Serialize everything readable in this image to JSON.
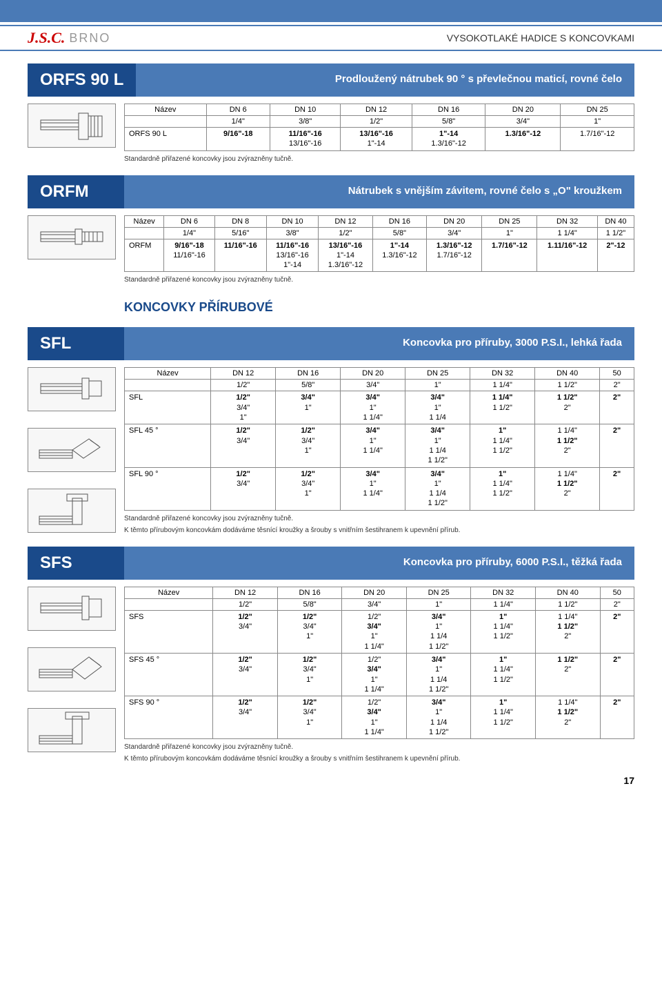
{
  "header": {
    "page_title": "VYSOKOTLAKÉ HADICE S KONCOVKAMI",
    "logo_jsc": "J.S.C.",
    "logo_brno": "BRNO"
  },
  "std_note": "Standardně přiřazené koncovky jsou zvýrazněny tučně.",
  "flange_note": "K těmto přírubovým koncovkám dodáváme těsnící kroužky a šrouby s vnitřním šestihranem k upevnění přírub.",
  "page_number": "17",
  "s1": {
    "code": "ORFS 90 L",
    "desc": "Prodloužený nátrubek 90 ° s převlečnou maticí, rovné čelo",
    "table": {
      "head1": [
        "Název",
        "DN 6",
        "DN 10",
        "DN 12",
        "DN 16",
        "DN 20",
        "DN 25"
      ],
      "head2": [
        "",
        "1/4\"",
        "3/8\"",
        "1/2\"",
        "5/8\"",
        "3/4\"",
        "1\""
      ],
      "rows": [
        [
          "ORFS 90 L",
          "9/16\"-18",
          [
            "11/16\"-16",
            "13/16\"-16"
          ],
          [
            "13/16\"-16",
            "1\"-14"
          ],
          [
            "1\"-14",
            "1.3/16\"-12"
          ],
          "1.3/16\"-12",
          "1.7/16\"-12"
        ]
      ],
      "bold": [
        [
          0,
          1
        ],
        [
          1,
          0
        ],
        [
          2,
          0
        ],
        [
          3,
          0
        ],
        [
          4,
          0
        ],
        [
          5,
          0
        ]
      ]
    }
  },
  "s2": {
    "code": "ORFM",
    "desc": "Nátrubek s vnějším závitem, rovné čelo s „O\" kroužkem",
    "table": {
      "head1": [
        "Název",
        "DN 6",
        "DN 8",
        "DN 10",
        "DN 12",
        "DN 16",
        "DN 20",
        "DN 25",
        "DN 32",
        "DN 40"
      ],
      "head2": [
        "",
        "1/4\"",
        "5/16\"",
        "3/8\"",
        "1/2\"",
        "5/8\"",
        "3/4\"",
        "1\"",
        "1 1/4\"",
        "1 1/2\""
      ],
      "rows": [
        [
          "ORFM",
          [
            "9/16\"-18",
            "11/16\"-16"
          ],
          "11/16\"-16",
          [
            "11/16\"-16",
            "13/16\"-16",
            "1\"-14"
          ],
          [
            "13/16\"-16",
            "1\"-14",
            "1.3/16\"-12"
          ],
          [
            "1\"-14",
            "1.3/16\"-12"
          ],
          [
            "1.3/16\"-12",
            "1.7/16\"-12"
          ],
          "1.7/16\"-12",
          "1.11/16\"-12",
          "2\"-12"
        ]
      ],
      "bold": [
        [
          0,
          1
        ],
        [
          1,
          0
        ],
        [
          2,
          0
        ],
        [
          3,
          0
        ],
        [
          4,
          0
        ],
        [
          5,
          0
        ],
        [
          6,
          0
        ],
        [
          7,
          0
        ],
        [
          8,
          0
        ],
        [
          9,
          0
        ]
      ]
    }
  },
  "inter": "KONCOVKY PŘÍRUBOVÉ",
  "s3": {
    "code": "SFL",
    "desc": "Koncovka pro příruby, 3000 P.S.I., lehká řada",
    "table": {
      "head1": [
        "Název",
        "DN 12",
        "DN 16",
        "DN 20",
        "DN 25",
        "DN 32",
        "DN 40",
        "50"
      ],
      "head2": [
        "",
        "1/2\"",
        "5/8\"",
        "3/4\"",
        "1\"",
        "1 1/4\"",
        "1 1/2\"",
        "2\""
      ],
      "rows": [
        [
          "SFL",
          [
            "1/2\"",
            "3/4\"",
            "1\""
          ],
          [
            "3/4\"",
            "1\""
          ],
          [
            "3/4\"",
            "1\"",
            "1 1/4\""
          ],
          [
            "3/4\"",
            "1\"",
            "1 1/4"
          ],
          [
            "1 1/4\"",
            "1 1/2\""
          ],
          [
            "1 1/2\"",
            "2\""
          ],
          "2\""
        ],
        [
          "SFL 45 °",
          [
            "1/2\"",
            "3/4\""
          ],
          [
            "1/2\"",
            "3/4\"",
            "1\""
          ],
          [
            "3/4\"",
            "1\"",
            "1 1/4\""
          ],
          [
            "3/4\"",
            "1\"",
            "1 1/4",
            "1 1/2\""
          ],
          [
            "1\"",
            "1 1/4\"",
            "1 1/2\""
          ],
          [
            "1 1/4\"",
            "1 1/2\"",
            "2\""
          ],
          "2\""
        ],
        [
          "SFL 90 °",
          [
            "1/2\"",
            "3/4\""
          ],
          [
            "1/2\"",
            "3/4\"",
            "1\""
          ],
          [
            "3/4\"",
            "1\"",
            "1 1/4\""
          ],
          [
            "3/4\"",
            "1\"",
            "1 1/4",
            "1 1/2\""
          ],
          [
            "1\"",
            "1 1/4\"",
            "1 1/2\""
          ],
          [
            "1 1/4\"",
            "1 1/2\"",
            "2\""
          ],
          "2\""
        ]
      ],
      "bold": {
        "0": [
          [
            1,
            0
          ],
          [
            2,
            0
          ],
          [
            3,
            0
          ],
          [
            4,
            0
          ],
          [
            5,
            0
          ],
          [
            6,
            0
          ],
          [
            7,
            0
          ]
        ],
        "1": [
          [
            1,
            0
          ],
          [
            2,
            0
          ],
          [
            3,
            0
          ],
          [
            4,
            0
          ],
          [
            5,
            0
          ],
          [
            6,
            1
          ],
          [
            7,
            0
          ]
        ],
        "2": [
          [
            1,
            0
          ],
          [
            2,
            0
          ],
          [
            3,
            0
          ],
          [
            4,
            0
          ],
          [
            5,
            0
          ],
          [
            6,
            1
          ],
          [
            7,
            0
          ]
        ]
      }
    }
  },
  "s4": {
    "code": "SFS",
    "desc": "Koncovka pro příruby, 6000 P.S.I., těžká řada",
    "table": {
      "head1": [
        "Název",
        "DN 12",
        "DN 16",
        "DN 20",
        "DN 25",
        "DN 32",
        "DN 40",
        "50"
      ],
      "head2": [
        "",
        "1/2\"",
        "5/8\"",
        "3/4\"",
        "1\"",
        "1 1/4\"",
        "1 1/2\"",
        "2\""
      ],
      "rows": [
        [
          "SFS",
          [
            "1/2\"",
            "3/4\""
          ],
          [
            "1/2\"",
            "3/4\"",
            "1\""
          ],
          [
            "1/2\"",
            "3/4\"",
            "1\"",
            "1 1/4\""
          ],
          [
            "3/4\"",
            "1\"",
            "1 1/4",
            "1 1/2\""
          ],
          [
            "1\"",
            "1 1/4\"",
            "1 1/2\""
          ],
          [
            "1 1/4\"",
            "1 1/2\"",
            "2\""
          ],
          "2\""
        ],
        [
          "SFS 45 °",
          [
            "1/2\"",
            "3/4\""
          ],
          [
            "1/2\"",
            "3/4\"",
            "1\""
          ],
          [
            "1/2\"",
            "3/4\"",
            "1\"",
            "1 1/4\""
          ],
          [
            "3/4\"",
            "1\"",
            "1 1/4",
            "1 1/2\""
          ],
          [
            "1\"",
            "1 1/4\"",
            "1 1/2\""
          ],
          [
            "",
            "1 1/2\"",
            "2\""
          ],
          "2\""
        ],
        [
          "SFS 90 °",
          [
            "1/2\"",
            "3/4\""
          ],
          [
            "1/2\"",
            "3/4\"",
            "1\""
          ],
          [
            "1/2\"",
            "3/4\"",
            "1\"",
            "1 1/4\""
          ],
          [
            "3/4\"",
            "1\"",
            "1 1/4",
            "1 1/2\""
          ],
          [
            "1\"",
            "1 1/4\"",
            "1 1/2\""
          ],
          [
            "1 1/4\"",
            "1 1/2\"",
            "2\""
          ],
          "2\""
        ]
      ],
      "bold": {
        "0": [
          [
            1,
            0
          ],
          [
            2,
            0
          ],
          [
            3,
            1
          ],
          [
            4,
            0
          ],
          [
            5,
            0
          ],
          [
            6,
            1
          ],
          [
            7,
            0
          ]
        ],
        "1": [
          [
            1,
            0
          ],
          [
            2,
            0
          ],
          [
            3,
            1
          ],
          [
            4,
            0
          ],
          [
            5,
            0
          ],
          [
            6,
            1
          ],
          [
            7,
            0
          ]
        ],
        "2": [
          [
            1,
            0
          ],
          [
            2,
            0
          ],
          [
            3,
            1
          ],
          [
            4,
            0
          ],
          [
            5,
            0
          ],
          [
            6,
            1
          ],
          [
            7,
            0
          ]
        ]
      }
    }
  },
  "colors": {
    "band": "#4a7ab6",
    "code_bg": "#1a4a8a",
    "logo_red": "#cc0000",
    "border": "#888888"
  }
}
